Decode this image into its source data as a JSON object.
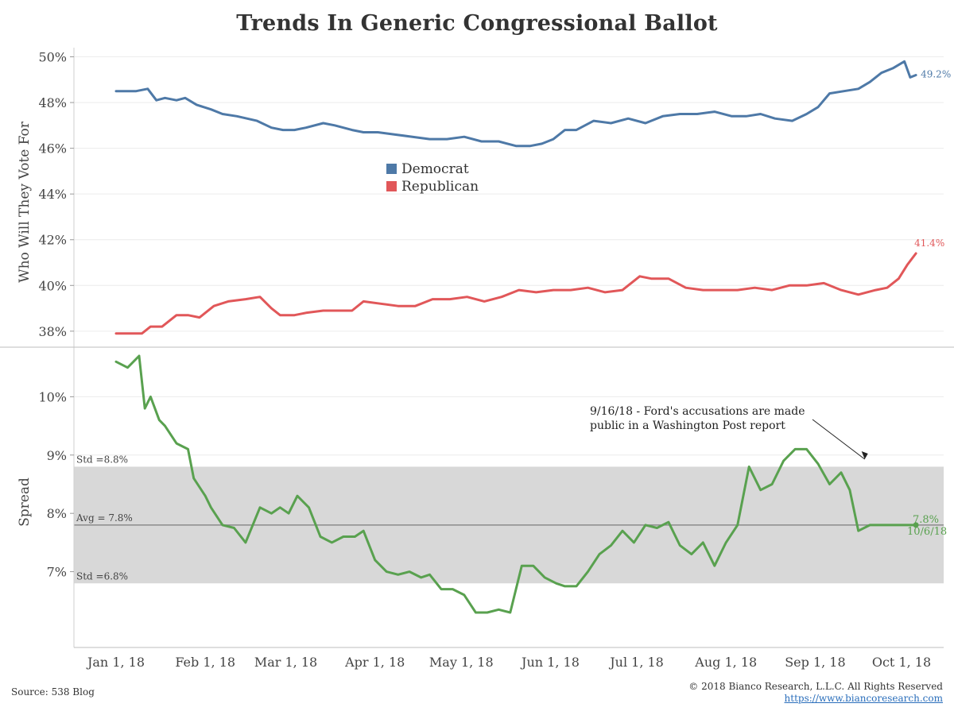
{
  "title": "Trends In Generic Congressional Ballot",
  "footer": {
    "source": "Source: 538 Blog",
    "copyright": "© 2018 Bianco Research, L.L.C. All Rights Reserved",
    "url": "https://www.biancoresearch.com"
  },
  "chart_data": [
    {
      "type": "line",
      "ylabel": "Who Will They Vote For",
      "ylim": [
        37.3,
        50.4
      ],
      "yticks": [
        38,
        40,
        42,
        44,
        46,
        48,
        50
      ],
      "ytick_labels": [
        "38%",
        "40%",
        "42%",
        "44%",
        "46%",
        "48%",
        "50%"
      ],
      "legend": {
        "placement": "center",
        "entries": [
          "Democrat",
          "Republican"
        ]
      },
      "end_labels": [
        "49.2%",
        "41.4%"
      ],
      "grid": true,
      "series": [
        {
          "name": "Democrat",
          "color": "#4e79a7",
          "x": [
            "2018-01-01",
            "2018-01-08",
            "2018-01-12",
            "2018-01-15",
            "2018-01-18",
            "2018-01-22",
            "2018-01-25",
            "2018-01-29",
            "2018-02-03",
            "2018-02-07",
            "2018-02-12",
            "2018-02-19",
            "2018-02-24",
            "2018-02-28",
            "2018-03-04",
            "2018-03-08",
            "2018-03-14",
            "2018-03-18",
            "2018-03-24",
            "2018-03-28",
            "2018-04-02",
            "2018-04-08",
            "2018-04-14",
            "2018-04-20",
            "2018-04-26",
            "2018-05-02",
            "2018-05-08",
            "2018-05-14",
            "2018-05-20",
            "2018-05-25",
            "2018-05-29",
            "2018-06-02",
            "2018-06-06",
            "2018-06-10",
            "2018-06-16",
            "2018-06-22",
            "2018-06-28",
            "2018-07-04",
            "2018-07-10",
            "2018-07-16",
            "2018-07-22",
            "2018-07-28",
            "2018-08-03",
            "2018-08-08",
            "2018-08-13",
            "2018-08-18",
            "2018-08-24",
            "2018-08-29",
            "2018-09-02",
            "2018-09-06",
            "2018-09-11",
            "2018-09-16",
            "2018-09-20",
            "2018-09-24",
            "2018-09-28",
            "2018-10-02",
            "2018-10-04",
            "2018-10-06"
          ],
          "values": [
            48.5,
            48.5,
            48.6,
            48.1,
            48.2,
            48.1,
            48.2,
            47.9,
            47.7,
            47.5,
            47.4,
            47.2,
            46.9,
            46.8,
            46.8,
            46.9,
            47.1,
            47.0,
            46.8,
            46.7,
            46.7,
            46.6,
            46.5,
            46.4,
            46.4,
            46.5,
            46.3,
            46.3,
            46.1,
            46.1,
            46.2,
            46.4,
            46.8,
            46.8,
            47.2,
            47.1,
            47.3,
            47.1,
            47.4,
            47.5,
            47.5,
            47.6,
            47.4,
            47.4,
            47.5,
            47.3,
            47.2,
            47.5,
            47.8,
            48.4,
            48.5,
            48.6,
            48.9,
            49.3,
            49.5,
            49.8,
            49.1,
            49.2
          ]
        },
        {
          "name": "Republican",
          "color": "#e15759",
          "x": [
            "2018-01-01",
            "2018-01-06",
            "2018-01-10",
            "2018-01-13",
            "2018-01-17",
            "2018-01-22",
            "2018-01-26",
            "2018-01-30",
            "2018-02-04",
            "2018-02-09",
            "2018-02-15",
            "2018-02-20",
            "2018-02-24",
            "2018-02-27",
            "2018-03-04",
            "2018-03-08",
            "2018-03-14",
            "2018-03-18",
            "2018-03-24",
            "2018-03-28",
            "2018-04-03",
            "2018-04-09",
            "2018-04-15",
            "2018-04-21",
            "2018-04-27",
            "2018-05-03",
            "2018-05-09",
            "2018-05-15",
            "2018-05-21",
            "2018-05-27",
            "2018-06-02",
            "2018-06-08",
            "2018-06-14",
            "2018-06-20",
            "2018-06-26",
            "2018-07-02",
            "2018-07-06",
            "2018-07-12",
            "2018-07-18",
            "2018-07-24",
            "2018-07-30",
            "2018-08-05",
            "2018-08-11",
            "2018-08-17",
            "2018-08-23",
            "2018-08-29",
            "2018-09-04",
            "2018-09-10",
            "2018-09-16",
            "2018-09-22",
            "2018-09-26",
            "2018-09-30",
            "2018-10-03",
            "2018-10-06"
          ],
          "values": [
            37.9,
            37.9,
            37.9,
            38.2,
            38.2,
            38.7,
            38.7,
            38.6,
            39.1,
            39.3,
            39.4,
            39.5,
            39.0,
            38.7,
            38.7,
            38.8,
            38.9,
            38.9,
            38.9,
            39.3,
            39.2,
            39.1,
            39.1,
            39.4,
            39.4,
            39.5,
            39.3,
            39.5,
            39.8,
            39.7,
            39.8,
            39.8,
            39.9,
            39.7,
            39.8,
            40.4,
            40.3,
            40.3,
            39.9,
            39.8,
            39.8,
            39.8,
            39.9,
            39.8,
            40.0,
            40.0,
            40.1,
            39.8,
            39.6,
            39.8,
            39.9,
            40.3,
            40.9,
            41.4
          ]
        }
      ]
    },
    {
      "type": "line",
      "ylabel": "Spread",
      "ylim": [
        5.7,
        10.85
      ],
      "yticks": [
        7,
        8,
        9,
        10
      ],
      "ytick_labels": [
        "7%",
        "8%",
        "9%",
        "10%"
      ],
      "xlabels": [
        "Jan 1, 18",
        "Feb 1, 18",
        "Mar 1, 18",
        "Apr 1, 18",
        "May 1, 18",
        "Jun 1, 18",
        "Jul 1, 18",
        "Aug 1, 18",
        "Sep 1, 18",
        "Oct 1, 18"
      ],
      "xtick_dates": [
        "2018-01-01",
        "2018-02-01",
        "2018-03-01",
        "2018-04-01",
        "2018-05-01",
        "2018-06-01",
        "2018-07-01",
        "2018-08-01",
        "2018-09-01",
        "2018-10-01"
      ],
      "band": {
        "low": 6.8,
        "high": 8.8,
        "avg": 7.8,
        "low_label": "Std =6.8%",
        "high_label": "Std =8.8%",
        "avg_label": "Avg = 7.8%"
      },
      "annotation": {
        "text_line1": "9/16/18 - Ford's accusations are made",
        "text_line2": "public in a Washington Post report",
        "date": "2018-09-16"
      },
      "end_label_value": "7.8%",
      "end_label_date": "10/6/18",
      "grid": true,
      "series": [
        {
          "name": "Spread",
          "color": "#59a14f",
          "x": [
            "2018-01-01",
            "2018-01-05",
            "2018-01-09",
            "2018-01-11",
            "2018-01-13",
            "2018-01-16",
            "2018-01-18",
            "2018-01-22",
            "2018-01-26",
            "2018-01-28",
            "2018-02-01",
            "2018-02-03",
            "2018-02-07",
            "2018-02-11",
            "2018-02-15",
            "2018-02-20",
            "2018-02-24",
            "2018-02-27",
            "2018-03-02",
            "2018-03-05",
            "2018-03-09",
            "2018-03-13",
            "2018-03-17",
            "2018-03-21",
            "2018-03-25",
            "2018-03-28",
            "2018-04-01",
            "2018-04-05",
            "2018-04-09",
            "2018-04-13",
            "2018-04-17",
            "2018-04-20",
            "2018-04-24",
            "2018-04-28",
            "2018-05-02",
            "2018-05-06",
            "2018-05-10",
            "2018-05-14",
            "2018-05-18",
            "2018-05-22",
            "2018-05-26",
            "2018-05-30",
            "2018-06-03",
            "2018-06-06",
            "2018-06-10",
            "2018-06-14",
            "2018-06-18",
            "2018-06-22",
            "2018-06-26",
            "2018-06-30",
            "2018-07-04",
            "2018-07-08",
            "2018-07-12",
            "2018-07-16",
            "2018-07-20",
            "2018-07-24",
            "2018-07-28",
            "2018-08-01",
            "2018-08-05",
            "2018-08-09",
            "2018-08-13",
            "2018-08-17",
            "2018-08-21",
            "2018-08-25",
            "2018-08-29",
            "2018-09-02",
            "2018-09-06",
            "2018-09-10",
            "2018-09-13",
            "2018-09-16",
            "2018-09-20",
            "2018-09-24",
            "2018-09-28",
            "2018-10-01",
            "2018-10-03",
            "2018-10-06"
          ],
          "values": [
            10.6,
            10.5,
            10.7,
            9.8,
            10.0,
            9.6,
            9.5,
            9.2,
            9.1,
            8.6,
            8.3,
            8.1,
            7.8,
            7.75,
            7.5,
            8.1,
            8.0,
            8.1,
            8.0,
            8.3,
            8.1,
            7.6,
            7.5,
            7.6,
            7.6,
            7.7,
            7.2,
            7.0,
            6.95,
            7.0,
            6.9,
            6.95,
            6.7,
            6.7,
            6.6,
            6.3,
            6.3,
            6.35,
            6.3,
            7.1,
            7.1,
            6.9,
            6.8,
            6.75,
            6.75,
            7.0,
            7.3,
            7.45,
            7.7,
            7.5,
            7.8,
            7.75,
            7.85,
            7.45,
            7.3,
            7.5,
            7.1,
            7.5,
            7.8,
            8.8,
            8.4,
            8.5,
            8.9,
            9.1,
            9.1,
            8.85,
            8.5,
            8.7,
            8.4,
            7.7,
            7.8,
            7.8,
            7.8,
            7.8,
            7.8,
            7.8
          ]
        }
      ]
    }
  ]
}
